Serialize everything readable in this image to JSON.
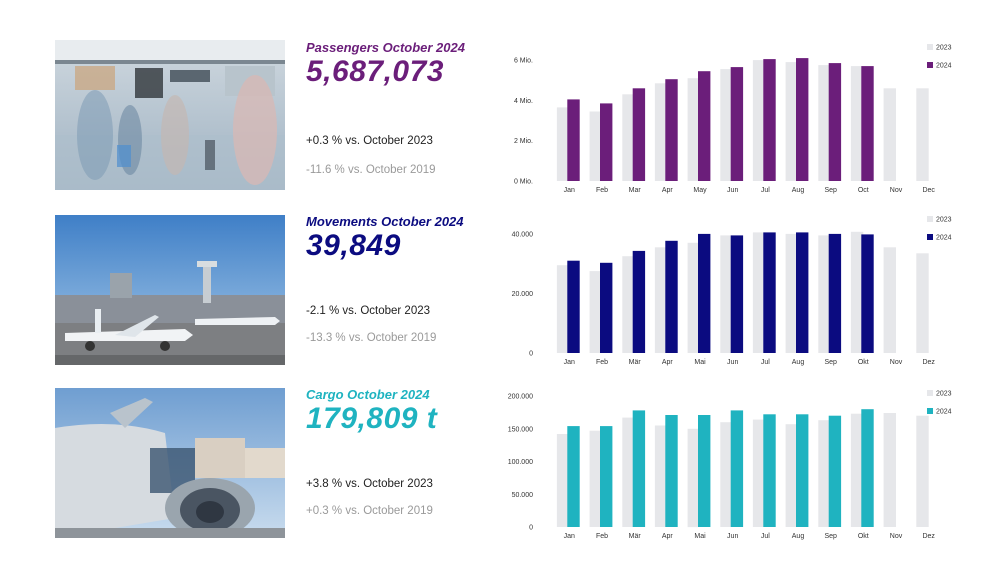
{
  "panels": [
    {
      "title": "Passengers October 2024",
      "value": "5,687,073",
      "cmp_prev": "+0.3 % vs. October 2023",
      "cmp_2019": "-11.6 % vs. October 2019",
      "color": "#6b1e7a"
    },
    {
      "title": "Movements October 2024",
      "value": "39,849",
      "cmp_prev": "-2.1 % vs. October 2023",
      "cmp_2019": "-13.3 % vs. October 2019",
      "color": "#0b0b80"
    },
    {
      "title": "Cargo October 2024",
      "value": "179,809 t",
      "cmp_prev": "+3.8 % vs. October 2023",
      "cmp_2019": "+0.3 % vs. October 2019",
      "color": "#1fb3c0"
    }
  ],
  "colors": {
    "prev_year": "#e6e7ea"
  },
  "chart_data": [
    {
      "type": "bar",
      "categories": [
        "Jan",
        "Feb",
        "Mar",
        "Apr",
        "May",
        "Jun",
        "Jul",
        "Aug",
        "Sep",
        "Oct",
        "Nov",
        "Dec"
      ],
      "series": [
        {
          "name": "2023",
          "values": [
            3.65,
            3.45,
            4.3,
            4.85,
            5.1,
            5.55,
            6.0,
            5.9,
            5.75,
            5.7,
            4.6,
            4.6
          ]
        },
        {
          "name": "2024",
          "values": [
            4.05,
            3.85,
            4.6,
            5.05,
            5.45,
            5.65,
            6.05,
            6.1,
            5.85,
            5.7,
            null,
            null
          ]
        }
      ],
      "yticks": [
        0,
        2,
        4,
        6
      ],
      "ytick_labels": [
        "0 Mio.",
        "2 Mio.",
        "4 Mio.",
        "6 Mio."
      ],
      "ylim": [
        0,
        6.5
      ],
      "legend": [
        "2023",
        "2024"
      ],
      "legend_position": "top-right",
      "grid": false
    },
    {
      "type": "bar",
      "categories": [
        "Jan",
        "Feb",
        "Mär",
        "Apr",
        "Mai",
        "Jun",
        "Jul",
        "Aug",
        "Sep",
        "Okt",
        "Nov",
        "Dez"
      ],
      "series": [
        {
          "name": "2023",
          "values": [
            29500,
            27500,
            32500,
            35500,
            37000,
            39500,
            40500,
            40000,
            39500,
            40700,
            35500,
            33500
          ]
        },
        {
          "name": "2024",
          "values": [
            31000,
            30300,
            34300,
            37700,
            40000,
            39500,
            40500,
            40500,
            40000,
            39849,
            null,
            null
          ]
        }
      ],
      "yticks": [
        0,
        20000,
        40000
      ],
      "ytick_labels": [
        "0",
        "20.000",
        "40.000"
      ],
      "ylim": [
        0,
        44000
      ],
      "legend": [
        "2023",
        "2024"
      ],
      "legend_position": "top-right",
      "grid": false
    },
    {
      "type": "bar",
      "categories": [
        "Jan",
        "Feb",
        "Mär",
        "Apr",
        "Mai",
        "Jun",
        "Jul",
        "Aug",
        "Sep",
        "Okt",
        "Nov",
        "Dez"
      ],
      "series": [
        {
          "name": "2023",
          "values": [
            142000,
            147000,
            167000,
            155000,
            150000,
            160000,
            164000,
            157000,
            163000,
            173000,
            174000,
            170000
          ]
        },
        {
          "name": "2024",
          "values": [
            154000,
            154000,
            178000,
            171000,
            171000,
            178000,
            172000,
            172000,
            170000,
            179809,
            null,
            null
          ]
        }
      ],
      "yticks": [
        0,
        50000,
        100000,
        150000,
        200000
      ],
      "ytick_labels": [
        "0",
        "50.000",
        "100.000",
        "150.000",
        "200.000"
      ],
      "ylim": [
        0,
        200000
      ],
      "legend": [
        "2023",
        "2024"
      ],
      "legend_position": "top-right",
      "grid": false
    }
  ]
}
